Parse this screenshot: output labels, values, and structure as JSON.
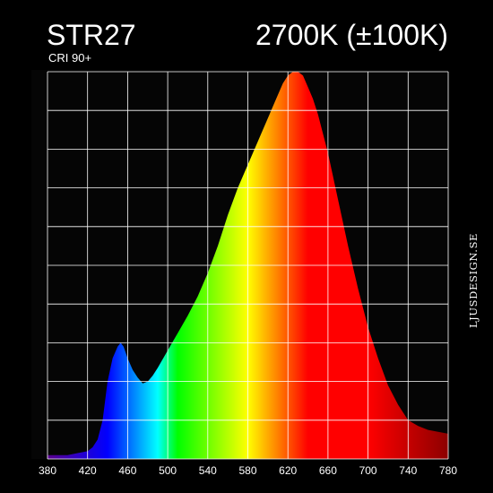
{
  "header": {
    "title": "STR27",
    "subtitle": "CRI 90+",
    "cct": "2700K (±100K)"
  },
  "brand": "LJUSDESIGN.SE",
  "colors": {
    "background": "#000000",
    "plot_background": "#050505",
    "grid": "#ffffff"
  },
  "chart_data": {
    "type": "area",
    "title": "STR27",
    "xlabel": "",
    "ylabel": "",
    "xlim": [
      380,
      780
    ],
    "ylim": [
      0,
      1
    ],
    "grid": true,
    "x_ticks": [
      380,
      420,
      460,
      500,
      540,
      580,
      620,
      660,
      700,
      740,
      780
    ],
    "fill": "wavelength-color spectrum gradient",
    "series": [
      {
        "x": [
          380,
          390,
          400,
          410,
          420,
          425,
          430,
          435,
          440,
          445,
          450,
          453,
          456,
          460,
          465,
          470,
          475,
          480,
          485,
          490,
          500,
          510,
          520,
          530,
          540,
          550,
          560,
          570,
          580,
          590,
          600,
          605,
          610,
          615,
          620,
          625,
          630,
          635,
          640,
          645,
          650,
          660,
          670,
          680,
          690,
          700,
          710,
          720,
          730,
          740,
          750,
          760,
          770,
          780
        ],
        "y": [
          0.01,
          0.01,
          0.01,
          0.015,
          0.02,
          0.03,
          0.05,
          0.1,
          0.2,
          0.26,
          0.29,
          0.3,
          0.29,
          0.26,
          0.23,
          0.21,
          0.195,
          0.2,
          0.215,
          0.235,
          0.28,
          0.325,
          0.37,
          0.42,
          0.48,
          0.55,
          0.63,
          0.7,
          0.76,
          0.82,
          0.88,
          0.91,
          0.94,
          0.97,
          0.99,
          1.0,
          1.0,
          0.99,
          0.96,
          0.93,
          0.89,
          0.79,
          0.67,
          0.55,
          0.44,
          0.34,
          0.26,
          0.19,
          0.14,
          0.1,
          0.085,
          0.075,
          0.07,
          0.065
        ]
      }
    ]
  }
}
